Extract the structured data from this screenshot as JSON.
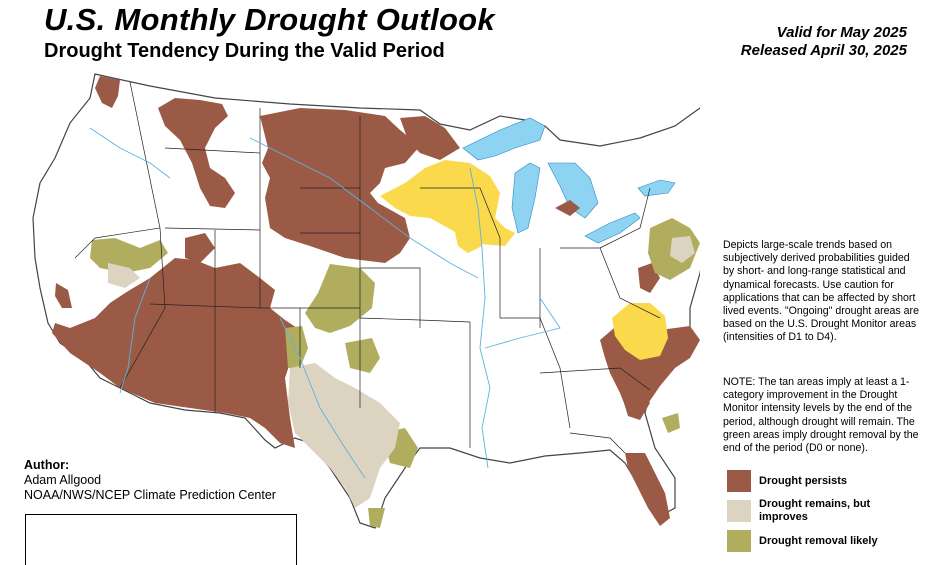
{
  "header": {
    "title": "U.S. Monthly Drought Outlook",
    "subtitle": "Drought Tendency During the Valid Period",
    "valid_for": "Valid for May 2025",
    "released": "Released April 30, 2025"
  },
  "description": "Depicts large-scale trends based on subjectively derived probabilities guided by short- and long-range statistical and dynamical forecasts. Use caution for applications that can be affected by short lived events. \"Ongoing\" drought areas are based on the U.S. Drought Monitor areas (intensities of D1 to D4).",
  "note": "NOTE: The tan areas imply at least a 1-category improvement in the Drought Monitor intensity levels by the end of the period, although drought will remain. The green areas imply drought removal by the end of the period (D0 or none).",
  "legend": [
    {
      "label": "Drought persists",
      "color": "#9a5a45"
    },
    {
      "label": "Drought remains, but improves",
      "color": "#dcd3c0"
    },
    {
      "label": "Drought removal likely",
      "color": "#b1ad5e"
    }
  ],
  "colors": {
    "persists": "#9a5a45",
    "improves": "#dcd3c0",
    "removal": "#b1ad5e",
    "development": "#fbd94c",
    "water": "#8fd3f2"
  },
  "author": {
    "heading": "Author:",
    "name": "Adam Allgood",
    "org": "NOAA/NWS/NCEP Climate Prediction Center"
  }
}
